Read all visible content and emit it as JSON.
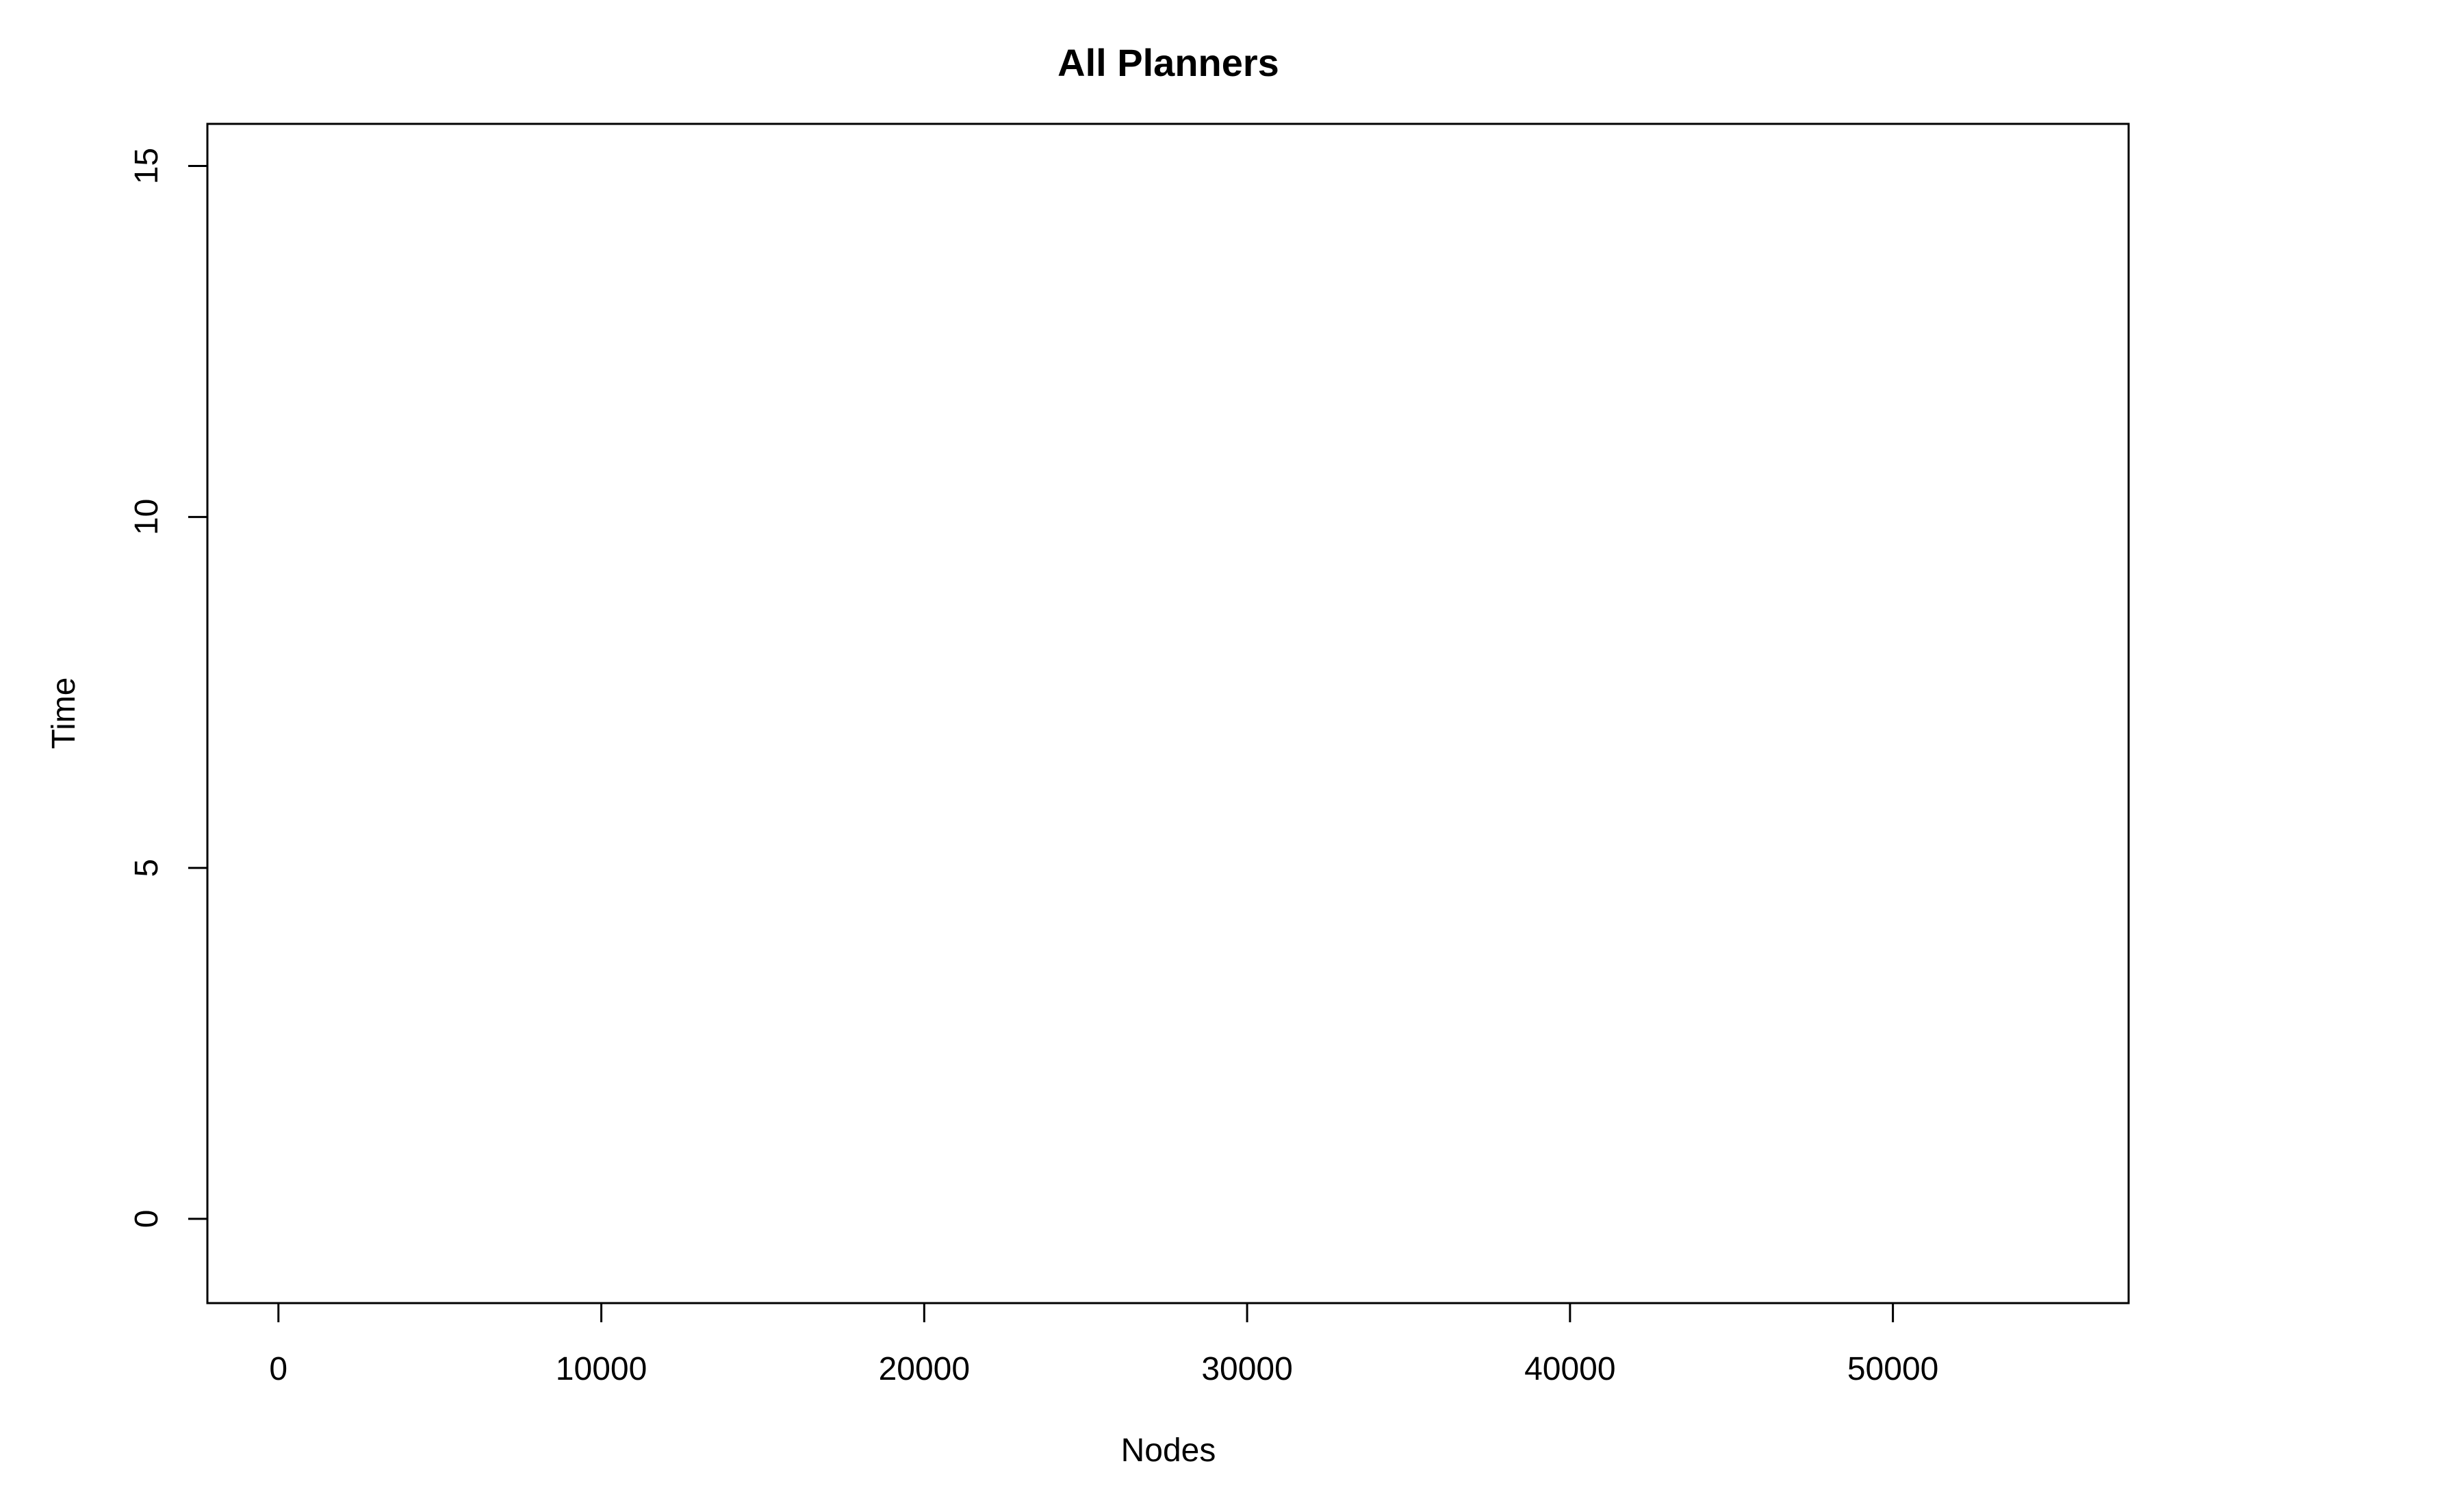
{
  "chart_data": {
    "type": "line",
    "title": "All Planners",
    "xlabel": "Nodes",
    "ylabel": "Time",
    "xlim": [
      -2200,
      57300
    ],
    "ylim": [
      -1.2,
      15.6
    ],
    "x_ticks": [
      0,
      10000,
      20000,
      30000,
      40000,
      50000
    ],
    "x_tick_labels": [
      "0",
      "10000",
      "20000",
      "30000",
      "40000",
      "50000"
    ],
    "y_ticks": [
      0,
      5,
      10,
      15
    ],
    "y_tick_labels": [
      "0",
      "5",
      "10",
      "15"
    ],
    "series": [],
    "grid": false,
    "legend": "none"
  },
  "colors": {
    "background": "#ffffff",
    "axis": "#000000",
    "text": "#000000"
  }
}
